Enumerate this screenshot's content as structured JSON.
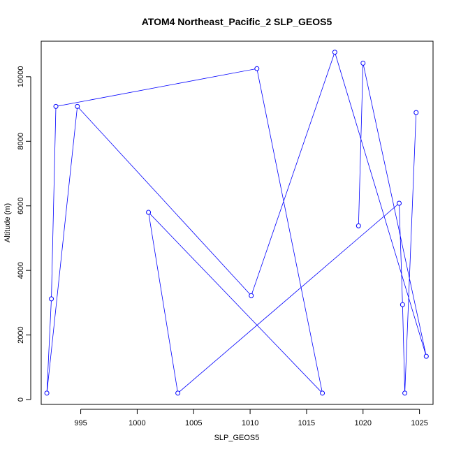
{
  "chart_data": {
    "type": "line",
    "title": "ATOM4 Northeast_Pacific_2 SLP_GEOS5",
    "xlabel": "SLP_GEOS5",
    "ylabel": "Altitude (m)",
    "xlim": [
      991.5,
      1026.2
    ],
    "ylim": [
      -150,
      11100
    ],
    "x_ticks": [
      995,
      1000,
      1005,
      1010,
      1015,
      1020,
      1025
    ],
    "y_ticks": [
      0,
      2000,
      4000,
      6000,
      8000,
      10000
    ],
    "grid": false,
    "marker": "open-circle",
    "color": "#0000ff",
    "series": [
      {
        "x": [
          1019.6,
          1020.0,
          1025.6,
          1017.5,
          1010.1,
          994.7,
          992.0,
          992.4,
          992.8,
          1010.6,
          1016.4,
          1001.0,
          1003.6,
          1023.2,
          1023.5,
          1023.7,
          1024.7
        ],
        "y": [
          5380,
          10420,
          1340,
          10760,
          3220,
          9080,
          200,
          3120,
          9080,
          10250,
          200,
          5800,
          200,
          6080,
          2940,
          200,
          8890
        ]
      }
    ]
  }
}
